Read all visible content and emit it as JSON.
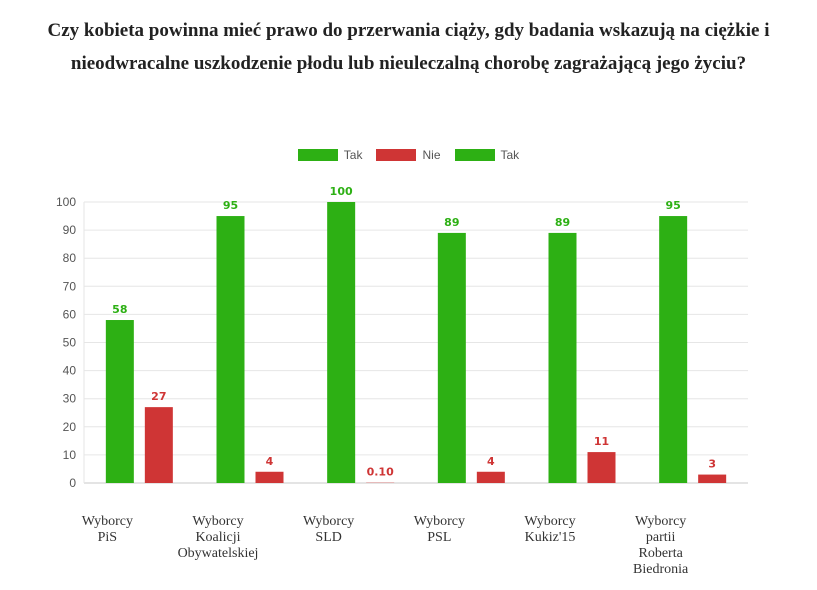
{
  "title": "Czy kobieta powinna mieć prawo do przerwania ciąży, gdy badania wskazują na ciężkie i nieodwracalne uszkodzenie płodu lub nieuleczalną chorobę zagrażającą jego życiu?",
  "colors": {
    "tak": "#2db014",
    "nie": "#cf3535",
    "grid": "#e6e6e6",
    "axis": "#c8c8c8",
    "tick": "#555555"
  },
  "legend": [
    {
      "label": "Tak",
      "color": "#2db014"
    },
    {
      "label": "Nie",
      "color": "#cf3535"
    },
    {
      "label": "Tak",
      "color": "#2db014"
    }
  ],
  "chart_data": {
    "type": "bar",
    "title": "Czy kobieta powinna mieć prawo do przerwania ciąży, gdy badania wskazują na ciężkie i nieodwracalne uszkodzenie płodu lub nieuleczalną chorobę zagrażającą jego życiu?",
    "categories": [
      [
        "Wyborcy",
        "PiS"
      ],
      [
        "Wyborcy",
        "Koalicji",
        "Obywatelskiej"
      ],
      [
        "Wyborcy",
        "SLD"
      ],
      [
        "Wyborcy",
        "PSL"
      ],
      [
        "Wyborcy",
        "Kukiz'15"
      ],
      [
        "Wyborcy",
        "partii",
        "Roberta",
        "Biedronia"
      ]
    ],
    "series": [
      {
        "name": "Tak",
        "color": "#2db014",
        "values": [
          58,
          95,
          100,
          89,
          89,
          95
        ],
        "labels": [
          "58",
          "95",
          "100",
          "89",
          "89",
          "95"
        ]
      },
      {
        "name": "Nie",
        "color": "#cf3535",
        "values": [
          27,
          4,
          0.1,
          4,
          11,
          3
        ],
        "labels": [
          "27",
          "4",
          "0.10",
          "4",
          "11",
          "3"
        ]
      }
    ],
    "y_ticks": [
      0,
      10,
      20,
      30,
      40,
      50,
      60,
      70,
      80,
      90,
      100
    ],
    "ylim": [
      0,
      100
    ],
    "grid": true,
    "legend_position": "top-center"
  }
}
